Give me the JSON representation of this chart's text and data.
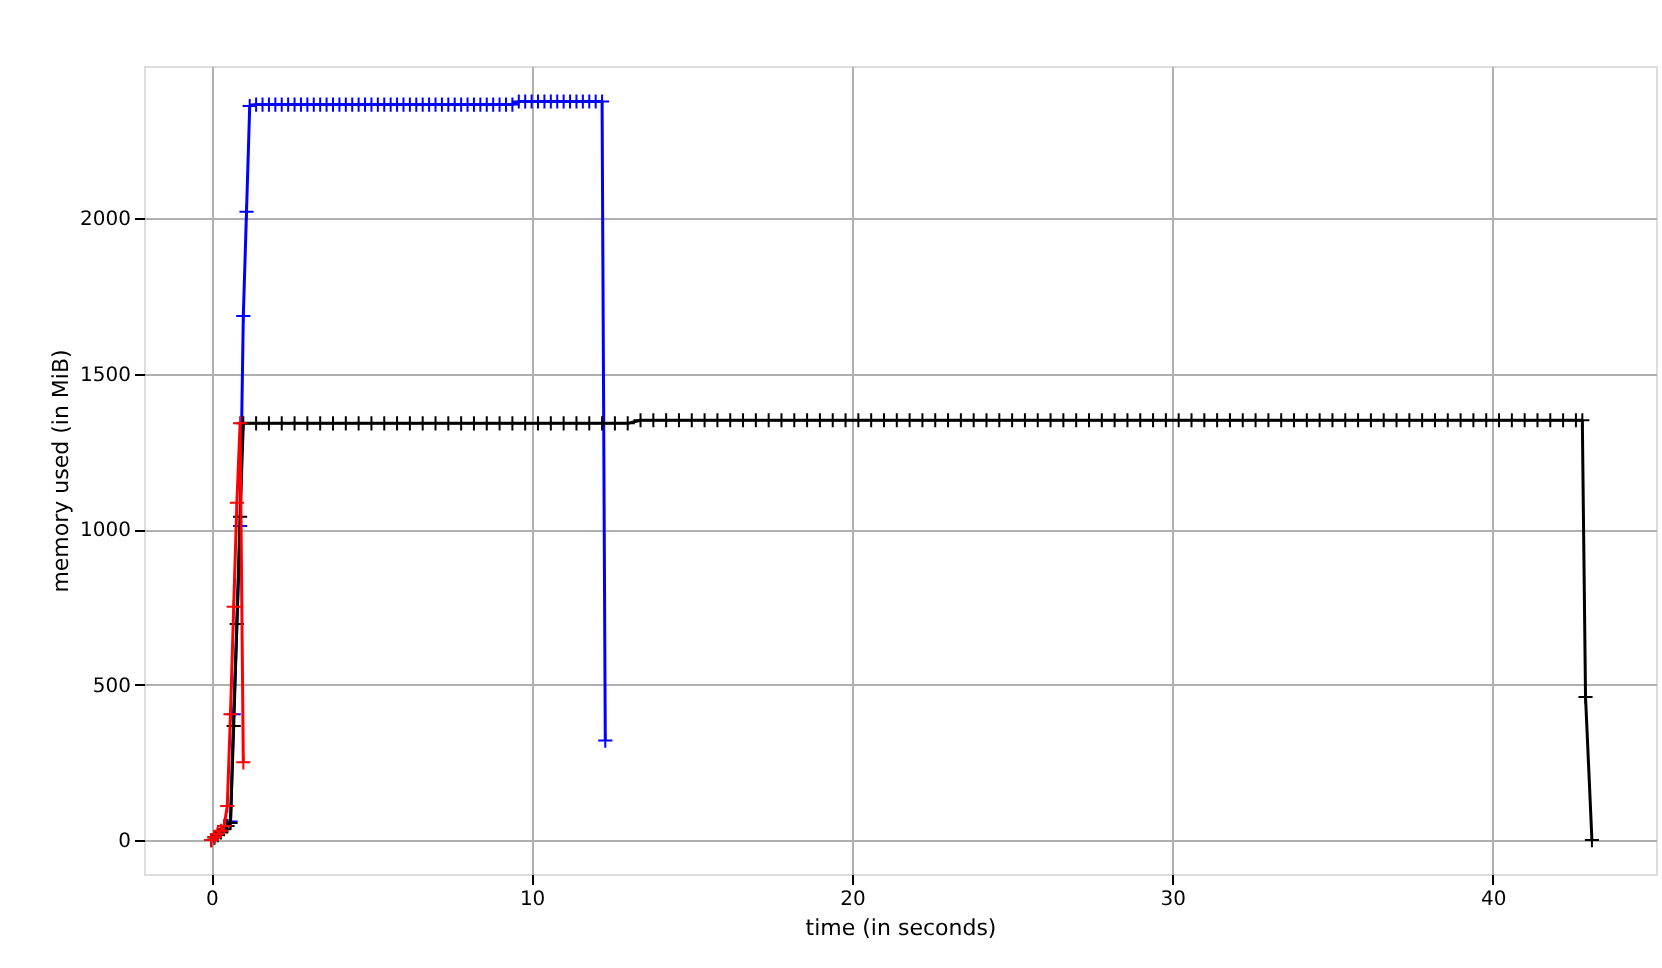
{
  "chart_data": {
    "type": "line",
    "xlabel": "time (in seconds)",
    "ylabel": "memory used (in MiB)",
    "xlim": [
      -2.1,
      45.1
    ],
    "ylim": [
      -109,
      2489
    ],
    "xticks": [
      0,
      10,
      20,
      30,
      40
    ],
    "yticks": [
      0,
      500,
      1000,
      1500,
      2000
    ],
    "grid": true,
    "marker": "cross",
    "line_style": "solid",
    "series": [
      {
        "color": "#0000ff",
        "x": [
          0.5,
          0.6,
          0.7,
          0.8,
          0.9,
          1.0,
          1.1,
          1.2,
          1.4,
          1.6,
          1.8,
          2.0,
          2.2,
          2.4,
          2.6,
          2.8,
          3.0,
          3.2,
          3.4,
          3.6,
          3.8,
          4.0,
          4.2,
          4.4,
          4.6,
          4.8,
          5.0,
          5.2,
          5.4,
          5.6,
          5.8,
          6.0,
          6.2,
          6.4,
          6.6,
          6.8,
          7.0,
          7.2,
          7.4,
          7.6,
          7.8,
          8.0,
          8.2,
          8.4,
          8.6,
          8.8,
          9.0,
          9.2,
          9.4,
          9.6,
          9.8,
          10.0,
          10.2,
          10.4,
          10.6,
          10.8,
          11.0,
          11.2,
          11.4,
          11.6,
          11.8,
          12.0,
          12.2,
          12.3
        ],
        "values": [
          45,
          60,
          405,
          695,
          1010,
          1685,
          2020,
          2360,
          2365,
          2365,
          2365,
          2365,
          2365,
          2365,
          2365,
          2365,
          2365,
          2365,
          2365,
          2365,
          2365,
          2365,
          2365,
          2365,
          2365,
          2365,
          2365,
          2365,
          2365,
          2365,
          2365,
          2365,
          2365,
          2365,
          2365,
          2365,
          2365,
          2365,
          2365,
          2365,
          2365,
          2365,
          2365,
          2365,
          2365,
          2365,
          2365,
          2365,
          2365,
          2375,
          2375,
          2375,
          2375,
          2375,
          2375,
          2375,
          2375,
          2375,
          2375,
          2375,
          2375,
          2375,
          2375,
          320
        ]
      },
      {
        "color": "#000000",
        "x": [
          0,
          0.1,
          0.2,
          0.3,
          0.4,
          0.5,
          0.6,
          0.7,
          0.8,
          0.9,
          1.0,
          1.4,
          1.8,
          2.2,
          2.6,
          3.0,
          3.4,
          3.8,
          4.2,
          4.6,
          5.0,
          5.4,
          5.8,
          6.2,
          6.6,
          7.0,
          7.4,
          7.8,
          8.2,
          8.6,
          9.0,
          9.4,
          9.8,
          10.2,
          10.6,
          11.0,
          11.4,
          11.8,
          12.2,
          12.6,
          13.0,
          13.4,
          13.8,
          14.2,
          14.6,
          15.0,
          15.4,
          15.8,
          16.2,
          16.6,
          17.0,
          17.4,
          17.8,
          18.2,
          18.6,
          19.0,
          19.4,
          19.8,
          20.2,
          20.6,
          21.0,
          21.4,
          21.8,
          22.2,
          22.6,
          23.0,
          23.4,
          23.8,
          24.2,
          24.6,
          25.0,
          25.4,
          25.8,
          26.2,
          26.6,
          27.0,
          27.4,
          27.8,
          28.2,
          28.6,
          29.0,
          29.4,
          29.8,
          30.2,
          30.6,
          31.0,
          31.4,
          31.8,
          32.2,
          32.6,
          33.0,
          33.4,
          33.8,
          34.2,
          34.6,
          35.0,
          35.4,
          35.8,
          36.2,
          36.6,
          37.0,
          37.4,
          37.8,
          38.2,
          38.6,
          39.0,
          39.4,
          39.8,
          40.2,
          40.6,
          41.0,
          41.4,
          41.8,
          42.2,
          42.6,
          42.8,
          42.9,
          43.1
        ],
        "values": [
          0,
          8,
          16,
          25,
          35,
          45,
          55,
          367,
          695,
          1040,
          1340,
          1340,
          1340,
          1340,
          1340,
          1340,
          1340,
          1340,
          1340,
          1340,
          1340,
          1340,
          1340,
          1340,
          1340,
          1340,
          1340,
          1340,
          1340,
          1340,
          1340,
          1340,
          1340,
          1340,
          1340,
          1340,
          1340,
          1340,
          1340,
          1340,
          1340,
          1350,
          1350,
          1350,
          1350,
          1350,
          1350,
          1350,
          1350,
          1350,
          1350,
          1350,
          1350,
          1350,
          1350,
          1350,
          1350,
          1350,
          1350,
          1350,
          1350,
          1350,
          1350,
          1350,
          1350,
          1350,
          1350,
          1350,
          1350,
          1350,
          1350,
          1350,
          1350,
          1350,
          1350,
          1350,
          1350,
          1350,
          1350,
          1350,
          1350,
          1350,
          1350,
          1350,
          1350,
          1350,
          1350,
          1350,
          1350,
          1350,
          1350,
          1350,
          1350,
          1350,
          1350,
          1350,
          1350,
          1350,
          1350,
          1350,
          1350,
          1350,
          1350,
          1350,
          1350,
          1350,
          1350,
          1350,
          1350,
          1350,
          1350,
          1350,
          1350,
          1350,
          1350,
          1350,
          460,
          0
        ]
      },
      {
        "color": "#ff0000",
        "x": [
          0,
          0.1,
          0.2,
          0.3,
          0.4,
          0.5,
          0.6,
          0.7,
          0.8,
          0.9,
          1.0
        ],
        "values": [
          0,
          10,
          20,
          30,
          45,
          110,
          405,
          750,
          1085,
          1340,
          250
        ]
      }
    ]
  }
}
